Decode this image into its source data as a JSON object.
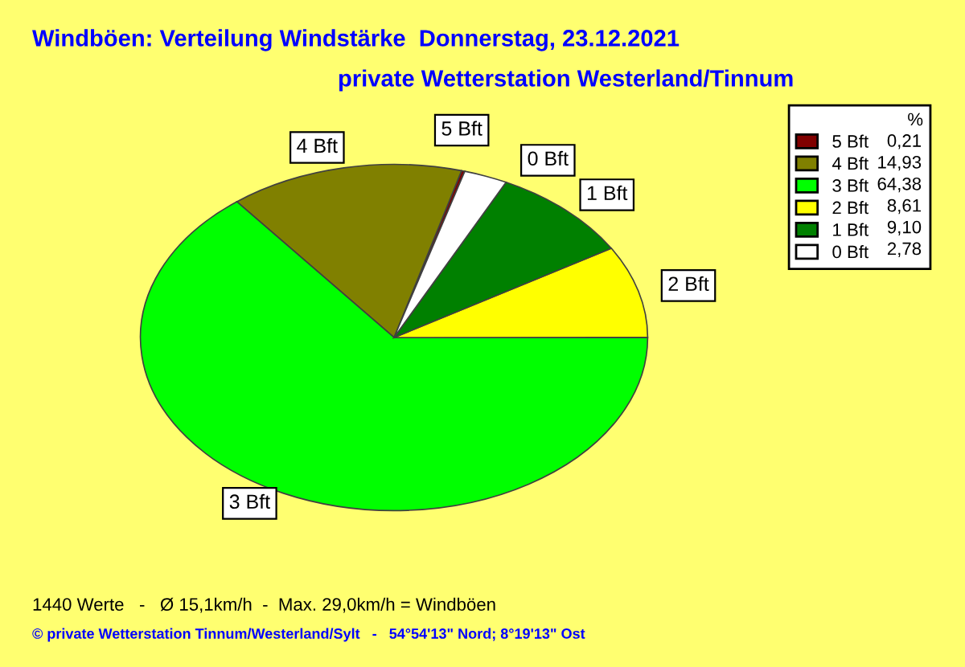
{
  "chart_data": {
    "type": "pie",
    "title": "Windböen: Verteilung Windstärke  Donnerstag, 23.12.2021",
    "subtitle": "private Wetterstation Westerland/Tinnum",
    "categories": [
      "5 Bft",
      "4 Bft",
      "3 Bft",
      "2 Bft",
      "1 Bft",
      "0 Bft"
    ],
    "values": [
      0.21,
      14.93,
      64.38,
      8.61,
      9.1,
      2.78
    ],
    "value_labels": [
      "0,21",
      "14,93",
      "64,38",
      "8,61",
      "9,10",
      "2,78"
    ],
    "colors": [
      "#800000",
      "#808000",
      "#00ff00",
      "#ffff00",
      "#008000",
      "#ffffff"
    ],
    "legend_title": "%",
    "legend": "right",
    "annotations": [
      "1440 Werte   -   Ø 15,1km/h  -  Max. 29,0km/h = Windböen",
      "© private Wetterstation Tinnum/Westerland/Sylt   -   54°54'13\" Nord; 8°19'13\" Ost"
    ]
  }
}
